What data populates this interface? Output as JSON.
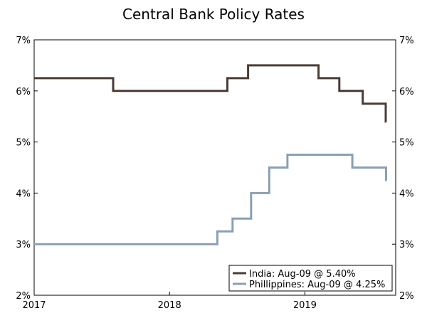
{
  "chart_data": {
    "type": "line",
    "title": "Central Bank Policy Rates",
    "xlabel": "",
    "ylabel": "",
    "x_range": [
      "2017-01-01",
      "2019-08-09"
    ],
    "x_ticks": [
      {
        "date": "2017-01-01",
        "label": "2017"
      },
      {
        "date": "2018-01-01",
        "label": "2018"
      },
      {
        "date": "2019-01-01",
        "label": "2019"
      }
    ],
    "ylim": [
      2,
      7
    ],
    "y_ticks": [
      {
        "value": 2,
        "label": "2%"
      },
      {
        "value": 3,
        "label": "3%"
      },
      {
        "value": 4,
        "label": "4%"
      },
      {
        "value": 5,
        "label": "5%"
      },
      {
        "value": 6,
        "label": "6%"
      },
      {
        "value": 7,
        "label": "7%"
      }
    ],
    "grid": false,
    "legend_position": "bottom-right",
    "step": true,
    "series": [
      {
        "name": "India: Aug-09 @ 5.40%",
        "color": "#4a3c34",
        "points": [
          {
            "date": "2017-01-01",
            "value": 6.25
          },
          {
            "date": "2017-08-02",
            "value": 6.0
          },
          {
            "date": "2018-06-06",
            "value": 6.25
          },
          {
            "date": "2018-08-01",
            "value": 6.5
          },
          {
            "date": "2019-02-07",
            "value": 6.25
          },
          {
            "date": "2019-04-04",
            "value": 6.0
          },
          {
            "date": "2019-06-06",
            "value": 5.75
          },
          {
            "date": "2019-08-07",
            "value": 5.4
          },
          {
            "date": "2019-08-09",
            "value": 5.4
          }
        ]
      },
      {
        "name": "Phillippines: Aug-09 @ 4.25%",
        "color": "#8aa0b3",
        "points": [
          {
            "date": "2017-01-01",
            "value": 3.0
          },
          {
            "date": "2018-05-10",
            "value": 3.25
          },
          {
            "date": "2018-06-20",
            "value": 3.5
          },
          {
            "date": "2018-08-09",
            "value": 4.0
          },
          {
            "date": "2018-09-27",
            "value": 4.5
          },
          {
            "date": "2018-11-15",
            "value": 4.75
          },
          {
            "date": "2019-05-09",
            "value": 4.5
          },
          {
            "date": "2019-08-08",
            "value": 4.25
          },
          {
            "date": "2019-08-09",
            "value": 4.25
          }
        ]
      }
    ]
  }
}
